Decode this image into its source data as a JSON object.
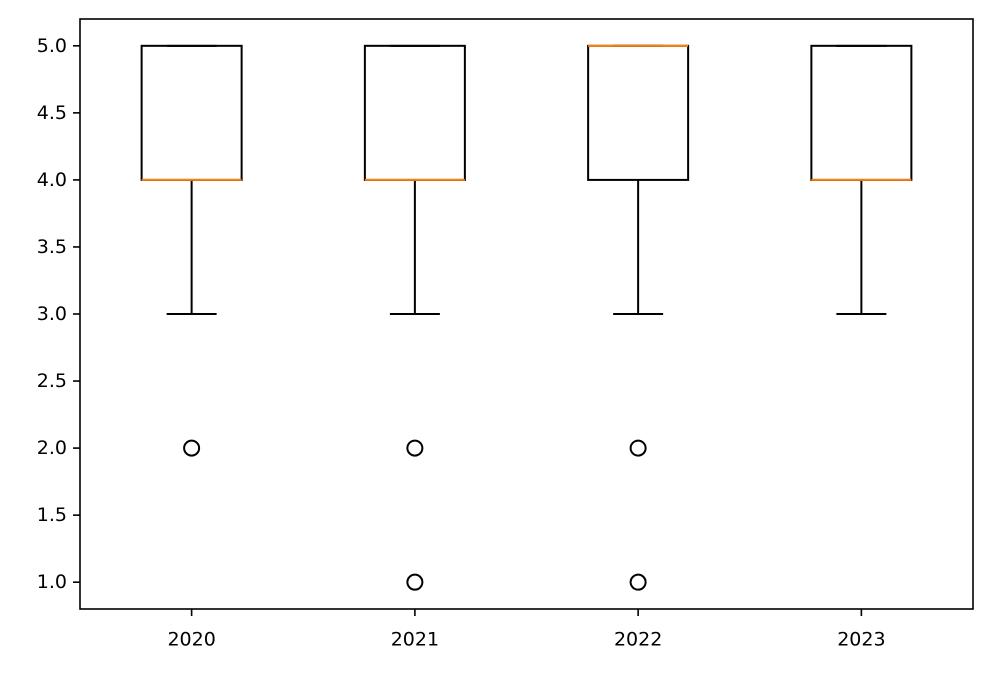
{
  "chart_data": {
    "type": "box",
    "title": "",
    "xlabel": "",
    "ylabel": "",
    "categories": [
      "2020",
      "2021",
      "2022",
      "2023"
    ],
    "ylim": [
      0.8,
      5.2
    ],
    "yticks": [
      "1.0",
      "1.5",
      "2.0",
      "2.5",
      "3.0",
      "3.5",
      "4.0",
      "4.5",
      "5.0"
    ],
    "grid": false,
    "boxes": [
      {
        "category": "2020",
        "whisker_low": 3.0,
        "q1": 4.0,
        "median": 4.0,
        "q3": 5.0,
        "whisker_high": 5.0,
        "outliers": [
          2.0
        ]
      },
      {
        "category": "2021",
        "whisker_low": 3.0,
        "q1": 4.0,
        "median": 4.0,
        "q3": 5.0,
        "whisker_high": 5.0,
        "outliers": [
          2.0,
          1.0
        ]
      },
      {
        "category": "2022",
        "whisker_low": 3.0,
        "q1": 4.0,
        "median": 5.0,
        "q3": 5.0,
        "whisker_high": 5.0,
        "outliers": [
          2.0,
          1.0
        ]
      },
      {
        "category": "2023",
        "whisker_low": 3.0,
        "q1": 4.0,
        "median": 4.0,
        "q3": 5.0,
        "whisker_high": 5.0,
        "outliers": []
      }
    ],
    "colors": {
      "box": "#000000",
      "median": "#ff7f0e",
      "outlier_edge": "#000000"
    }
  }
}
